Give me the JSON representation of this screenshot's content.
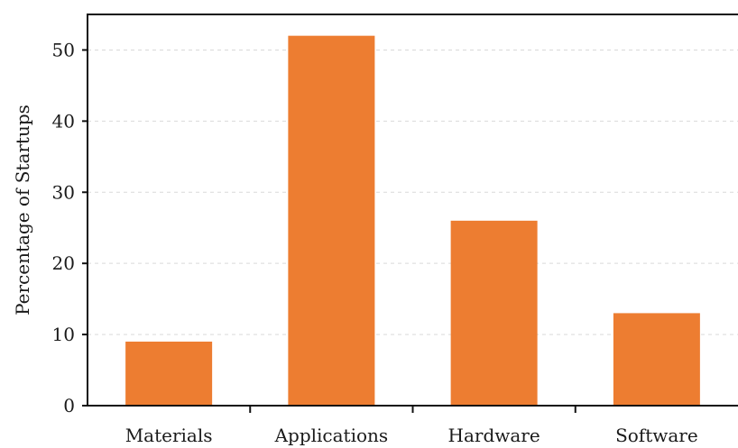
{
  "chart_data": {
    "type": "bar",
    "categories": [
      "Materials",
      "Applications",
      "Hardware",
      "Software"
    ],
    "values": [
      9,
      52,
      26,
      13
    ],
    "title": "",
    "xlabel": "",
    "ylabel": "Percentage of Startups",
    "ylim": [
      0,
      55
    ],
    "yticks": [
      0,
      10,
      20,
      30,
      40,
      50
    ],
    "grid": true,
    "bar_color": "#ed7d31"
  }
}
